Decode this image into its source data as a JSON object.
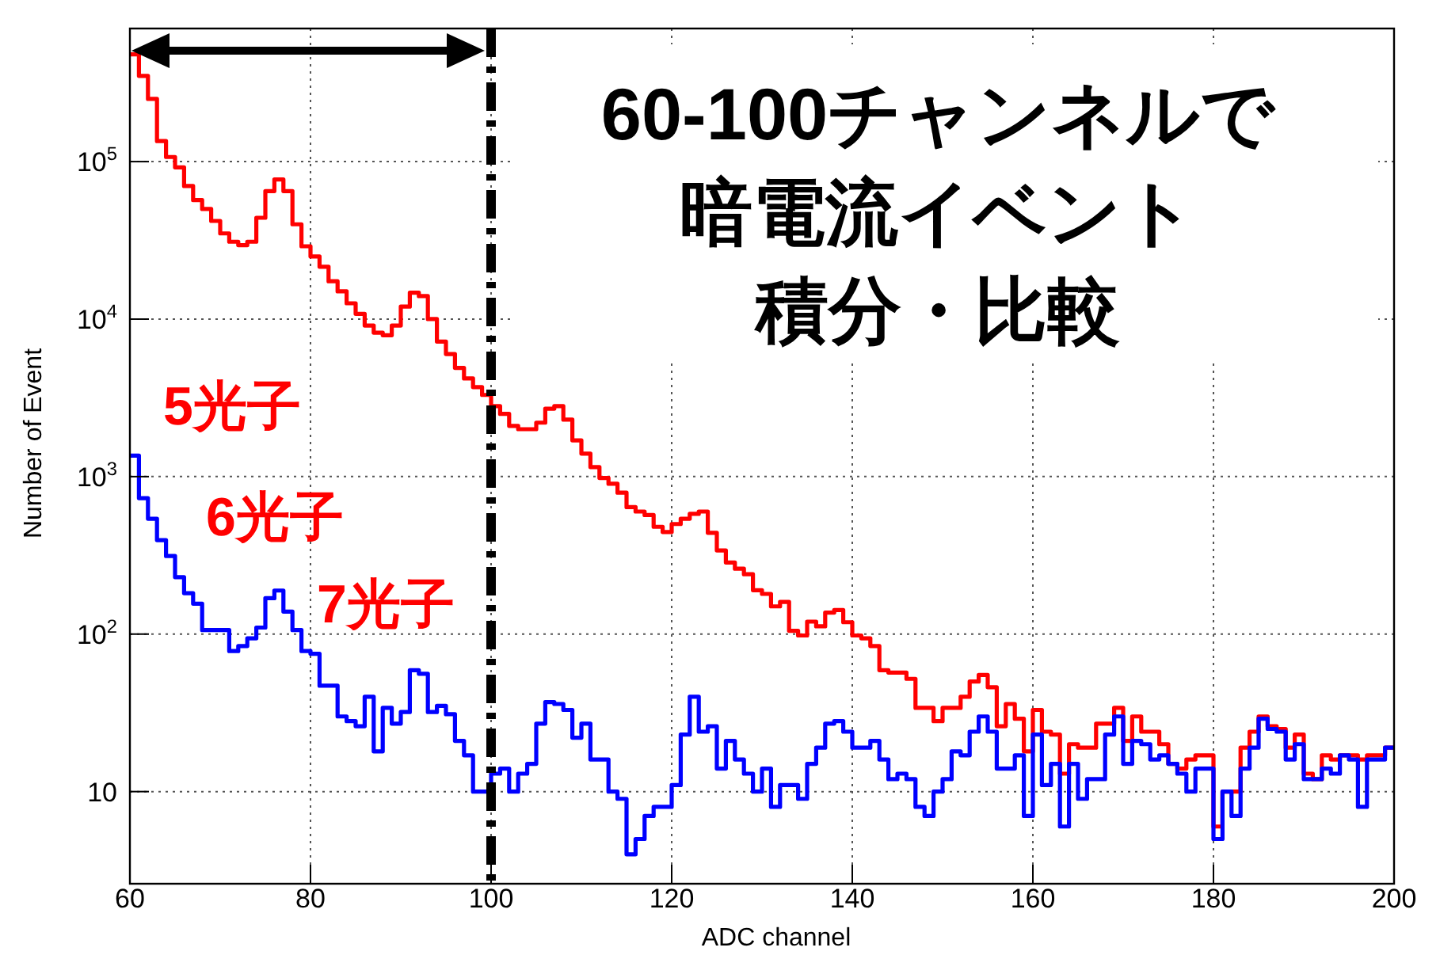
{
  "chart_data": {
    "type": "histogram",
    "xlabel": "ADC channel",
    "ylabel": "Number of Event",
    "bins": [
      60,
      61,
      62,
      63,
      64,
      65,
      66,
      67,
      68,
      69,
      70,
      71,
      72,
      73,
      74,
      75,
      76,
      77,
      78,
      79,
      80,
      81,
      82,
      83,
      84,
      85,
      86,
      87,
      88,
      89,
      90,
      91,
      92,
      93,
      94,
      95,
      96,
      97,
      98,
      99,
      100,
      101,
      102,
      103,
      104,
      105,
      106,
      107,
      108,
      109,
      110,
      111,
      112,
      113,
      114,
      115,
      116,
      117,
      118,
      119,
      120,
      121,
      122,
      123,
      124,
      125,
      126,
      127,
      128,
      129,
      130,
      131,
      132,
      133,
      134,
      135,
      136,
      137,
      138,
      139,
      140,
      141,
      142,
      143,
      144,
      145,
      146,
      147,
      148,
      149,
      150,
      151,
      152,
      153,
      154,
      155,
      156,
      157,
      158,
      159,
      160,
      161,
      162,
      163,
      164,
      165,
      166,
      167,
      168,
      169,
      170,
      171,
      172,
      173,
      174,
      175,
      176,
      177,
      178,
      179,
      180,
      181,
      182,
      183,
      184,
      185,
      186,
      187,
      188,
      189,
      190,
      191,
      192,
      193,
      194,
      195,
      196,
      197,
      198,
      199,
      200
    ],
    "series": [
      {
        "color": "#ff0000",
        "values": [
          480000,
          350000,
          250000,
          135000,
          107000,
          92000,
          70000,
          57000,
          50000,
          42000,
          35000,
          31000,
          29500,
          31000,
          44000,
          65000,
          77000,
          65000,
          40000,
          29000,
          25000,
          21500,
          17400,
          15000,
          12600,
          10800,
          9100,
          8200,
          7900,
          9100,
          12000,
          14700,
          14000,
          10000,
          7200,
          6000,
          4900,
          4200,
          3700,
          3300,
          2800,
          2500,
          2100,
          2000,
          2000,
          2200,
          2700,
          2800,
          2300,
          1700,
          1400,
          1150,
          980,
          900,
          790,
          640,
          600,
          570,
          480,
          445,
          500,
          540,
          580,
          600,
          440,
          340,
          285,
          260,
          240,
          190,
          180,
          150,
          160,
          105,
          98,
          120,
          112,
          137,
          142,
          119,
          98,
          94,
          84,
          59,
          57,
          57,
          52,
          34,
          34,
          28,
          34,
          34,
          40,
          50,
          55,
          46,
          26,
          36,
          29,
          18,
          33,
          24,
          23,
          13,
          20,
          19,
          19,
          27,
          27,
          34,
          21,
          30,
          24,
          24,
          20,
          15,
          14,
          16,
          17,
          17,
          6,
          10,
          10,
          19,
          24,
          30,
          26,
          25,
          19,
          23,
          13,
          12,
          17,
          16,
          17,
          17,
          16,
          17,
          17,
          19
        ]
      },
      {
        "color": "#0000ff",
        "values": [
          1360,
          730,
          540,
          395,
          313,
          230,
          182,
          156,
          106,
          106,
          106,
          78,
          84,
          94,
          110,
          169,
          189,
          139,
          106,
          78,
          75,
          47,
          47,
          30,
          28,
          26,
          40,
          18,
          34,
          27,
          32,
          59,
          56,
          32,
          35,
          31,
          21,
          17,
          10,
          10,
          13,
          14,
          10,
          13,
          15,
          27,
          37,
          36,
          33,
          22,
          27,
          16,
          16,
          10,
          9,
          4,
          5,
          7,
          8,
          8,
          11,
          23,
          40,
          24,
          26,
          14,
          21,
          16,
          13,
          10,
          14,
          8,
          11,
          11,
          9,
          15,
          19,
          27,
          28,
          24,
          19,
          19,
          21,
          16,
          12,
          13,
          12,
          8,
          7,
          10,
          12,
          18,
          17,
          24,
          30,
          24,
          14,
          14,
          17,
          7,
          23,
          11,
          15,
          6,
          15,
          9,
          12,
          12,
          23,
          30,
          15,
          21,
          20,
          16,
          17,
          15,
          13,
          10,
          14,
          14,
          5,
          10,
          7,
          14,
          19,
          29,
          25,
          24,
          16,
          20,
          12,
          12,
          14,
          13,
          17,
          16,
          8,
          16,
          16,
          19
        ]
      }
    ],
    "log": "y",
    "xlim": [
      60,
      200
    ],
    "ylim": [
      2.6,
      700000
    ],
    "xticks": [
      60,
      80,
      100,
      120,
      140,
      160,
      180,
      200
    ],
    "yticks": [
      10,
      {
        "value": 100,
        "label": "10$^{2}$"
      },
      {
        "value": 1000,
        "label": "10$^{3}$"
      },
      {
        "value": 10000,
        "label": "10$^{4}$"
      },
      {
        "value": 100000,
        "label": "10$^{5}$"
      }
    ],
    "grid": true,
    "ref_lines": [
      {
        "axis": "x",
        "value": 100,
        "color": "#000000",
        "line_style": "dashed"
      }
    ],
    "annotations": [
      "60-100チャンネルで",
      "暗電流イベント",
      "積分・比較",
      "5光子",
      "6光子",
      "7光子"
    ]
  }
}
